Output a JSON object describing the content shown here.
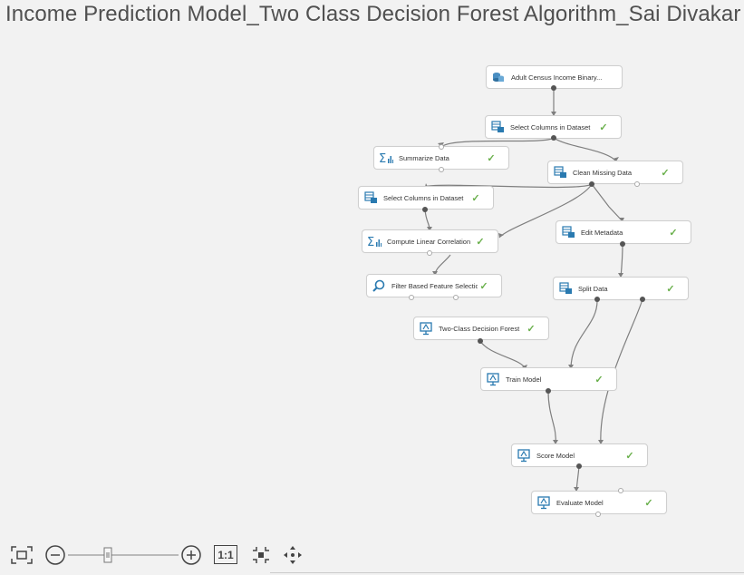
{
  "page": {
    "title": "Income Prediction Model_Two Class Decision Forest Algorithm_Sai Divakar"
  },
  "nodes": {
    "adult_census": {
      "label": "Adult Census Income Binary...",
      "icon": "dataset-icon"
    },
    "select_cols_1": {
      "label": "Select Columns in Dataset",
      "icon": "dataset-transform-icon",
      "status": "✓"
    },
    "summarize": {
      "label": "Summarize Data",
      "icon": "sigma-chart-icon",
      "status": "✓"
    },
    "clean_missing": {
      "label": "Clean Missing Data",
      "icon": "dataset-transform-icon",
      "status": "✓"
    },
    "select_cols_2": {
      "label": "Select Columns in Dataset",
      "icon": "dataset-transform-icon",
      "status": "✓"
    },
    "linear_corr": {
      "label": "Compute Linear Correlation",
      "icon": "sigma-chart-icon",
      "status": "✓"
    },
    "edit_metadata": {
      "label": "Edit Metadata",
      "icon": "dataset-transform-icon",
      "status": "✓"
    },
    "filter_feature": {
      "label": "Filter Based Feature Selection",
      "icon": "magnifier-icon",
      "status": "✓"
    },
    "split_data": {
      "label": "Split Data",
      "icon": "dataset-transform-icon",
      "status": "✓"
    },
    "decision_forest": {
      "label": "Two-Class Decision Forest",
      "icon": "model-icon",
      "status": "✓"
    },
    "train_model": {
      "label": "Train Model",
      "icon": "model-icon",
      "status": "✓"
    },
    "score_model": {
      "label": "Score Model",
      "icon": "model-icon",
      "status": "✓"
    },
    "evaluate_model": {
      "label": "Evaluate Model",
      "icon": "model-icon",
      "status": "✓"
    }
  },
  "toolbar": {
    "fit_label": "fit-to-screen-icon",
    "zoom_out": "zoom-out-icon",
    "zoom_in": "zoom-in-icon",
    "actual_size": "1:1",
    "center": "center-icon",
    "pan": "pan-icon"
  },
  "colors": {
    "accent": "#2a7ab0",
    "check": "#6ab04c",
    "wire": "#7a7a7a"
  }
}
